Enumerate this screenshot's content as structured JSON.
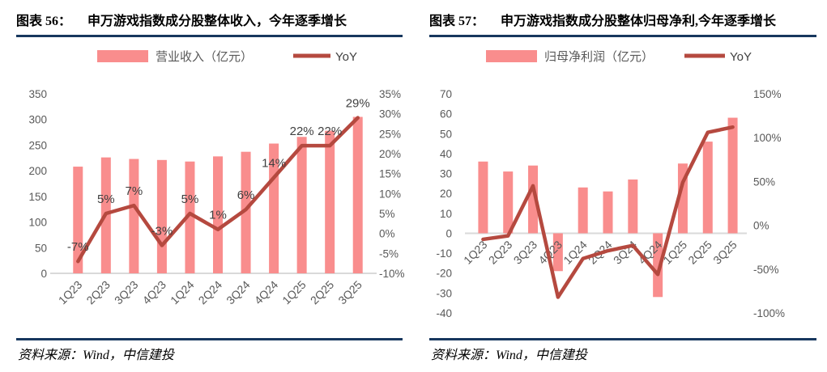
{
  "colors": {
    "bar": "#f98d8d",
    "line": "#b5493f",
    "rule": "#17375e",
    "baseline": "#d9d9d9",
    "axis_text": "#595959",
    "data_label": "#404040"
  },
  "panels": [
    {
      "figure_label": "图表 56：",
      "title": "申万游戏指数成分股整体收入，今年逐季增长",
      "source": "资料来源：Wind，中信建投"
    },
    {
      "figure_label": "图表 57：",
      "title": "申万游戏指数成分股整体归母净利,今年逐季增长",
      "source": "资料来源：Wind，中信建投"
    }
  ],
  "chart_data": [
    {
      "type": "bar",
      "subtype": "bar+line-combo",
      "title": "申万游戏指数成分股整体收入，今年逐季增长",
      "categories": [
        "1Q23",
        "2Q23",
        "3Q23",
        "4Q23",
        "1Q24",
        "2Q24",
        "3Q24",
        "4Q24",
        "1Q25",
        "2Q25",
        "3Q25"
      ],
      "series": [
        {
          "name": "营业收入（亿元）",
          "type": "bar",
          "axis": "left",
          "values": [
            208,
            226,
            223,
            221,
            218,
            228,
            237,
            253,
            266,
            278,
            305
          ]
        },
        {
          "name": "YoY",
          "type": "line",
          "axis": "right",
          "unit": "%",
          "values": [
            -7,
            5,
            7,
            -3,
            5,
            1,
            6,
            14,
            22,
            22,
            29
          ],
          "labels": [
            "-7%",
            "5%",
            "7%",
            "-3%",
            "5%",
            "1%",
            "6%",
            "14%",
            "22%",
            "22%",
            "29%"
          ]
        }
      ],
      "left_axis": {
        "min": 0,
        "max": 350,
        "step": 50,
        "format": "plain"
      },
      "right_axis": {
        "min": -10,
        "max": 35,
        "step": 5,
        "format": "percent"
      },
      "grid": false,
      "legend_position": "top"
    },
    {
      "type": "bar",
      "subtype": "bar+line-combo",
      "title": "申万游戏指数成分股整体归母净利,今年逐季增长",
      "categories": [
        "1Q23",
        "2Q23",
        "3Q23",
        "4Q23",
        "1Q24",
        "2Q24",
        "3Q24",
        "4Q24",
        "1Q25",
        "2Q25",
        "3Q25"
      ],
      "series": [
        {
          "name": "归母净利润（亿元）",
          "type": "bar",
          "axis": "left",
          "values": [
            36,
            31,
            34,
            -19,
            23,
            21,
            27,
            -32,
            35,
            46,
            58
          ]
        },
        {
          "name": "YoY",
          "type": "line",
          "axis": "right",
          "unit": "%",
          "values": [
            -16,
            -12,
            45,
            -82,
            -38,
            -29,
            -23,
            -56,
            49,
            106,
            112
          ]
        }
      ],
      "left_axis": {
        "min": -40,
        "max": 70,
        "step": 10,
        "format": "plain"
      },
      "right_axis": {
        "min": -100,
        "max": 150,
        "step": 50,
        "format": "percent"
      },
      "grid": false,
      "legend_position": "top"
    }
  ]
}
